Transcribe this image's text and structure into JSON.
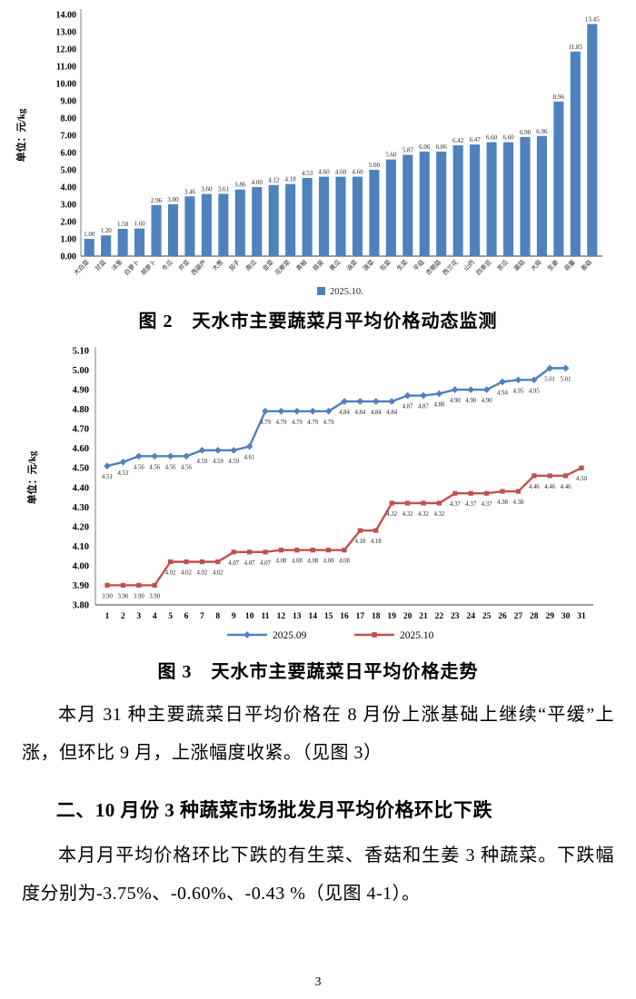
{
  "figures": {
    "fig2_caption": "图 2　天水市主要蔬菜月平均价格动态监测",
    "fig3_caption": "图 3　天水市主要蔬菜日平均价格走势"
  },
  "text": {
    "para1": "本月 31 种主要蔬菜日平均价格在 8 月份上涨基础上继续“平缓”上涨，但环比 9 月，上涨幅度收紧。（见图 3）",
    "heading2": "二、10 月份 3 种蔬菜市场批发月平均价格环比下跌",
    "para2": "本月月平均价格环比下跌的有生菜、香菇和生姜 3 种蔬菜。下跌幅度分别为-3.75%、-0.60%、-0.43 %（见图 4-1）。"
  },
  "page": {
    "number": "3"
  },
  "colors": {
    "bar_blue": "#4F81BD",
    "line_blue": "#4F81BD",
    "line_red": "#C0504D",
    "axis_gray": "#7f7f7f",
    "label_dark": "#262626"
  },
  "chart_data": [
    {
      "type": "bar",
      "title": "图 2 天水市主要蔬菜月平均价格动态监测",
      "ylabel": "单位：元/kg",
      "xlabel": "",
      "ylim": [
        0,
        14
      ],
      "ytick_step": 1,
      "grid": false,
      "legend": [
        "2025.10."
      ],
      "legend_position": "bottom",
      "bar_color": "#4F81BD",
      "categories": [
        "大白菜",
        "甘蓝",
        "洋葱",
        "白萝卜",
        "胡萝卜",
        "冬瓜",
        "芹菜",
        "西葫芦",
        "大葱",
        "茄子",
        "南瓜",
        "韭菜",
        "花椰菜",
        "青椒",
        "蒜苗",
        "黄瓜",
        "油菜",
        "菠菜",
        "包菜",
        "生菜",
        "平菇",
        "杏鲍菇",
        "西兰花",
        "山药",
        "四季豆",
        "苦瓜",
        "菌菇",
        "大蒜",
        "生姜",
        "蒜薹",
        "香菇"
      ],
      "values": [
        1.0,
        1.2,
        1.58,
        1.6,
        2.96,
        3.0,
        3.46,
        3.6,
        3.61,
        3.86,
        4.0,
        4.12,
        4.18,
        4.53,
        4.6,
        4.6,
        4.6,
        5.0,
        5.6,
        5.87,
        6.06,
        6.06,
        6.42,
        6.47,
        6.6,
        6.6,
        6.9,
        6.96,
        8.96,
        11.85,
        13.45
      ]
    },
    {
      "type": "line",
      "title": "图 3 天水市主要蔬菜日平均价格走势",
      "ylabel": "单位：元/kg",
      "xlabel": "",
      "ylim": [
        3.8,
        5.1
      ],
      "ytick_step": 0.1,
      "grid": false,
      "legend_position": "bottom",
      "x": [
        1,
        2,
        3,
        4,
        5,
        6,
        7,
        8,
        9,
        10,
        11,
        12,
        13,
        14,
        15,
        16,
        17,
        18,
        19,
        20,
        21,
        22,
        23,
        24,
        25,
        26,
        27,
        28,
        29,
        30,
        31
      ],
      "series": [
        {
          "name": "2025.09",
          "color": "#4F81BD",
          "marker": "diamond",
          "values": [
            4.51,
            4.53,
            4.56,
            4.56,
            4.56,
            4.56,
            4.59,
            4.59,
            4.59,
            4.61,
            4.79,
            4.79,
            4.79,
            4.79,
            4.79,
            4.84,
            4.84,
            4.84,
            4.84,
            4.87,
            4.87,
            4.88,
            4.9,
            4.9,
            4.9,
            4.94,
            4.95,
            4.95,
            5.01,
            5.01
          ]
        },
        {
          "name": "2025.10",
          "color": "#C0504D",
          "marker": "square",
          "values": [
            3.9,
            3.9,
            3.9,
            3.9,
            4.02,
            4.02,
            4.02,
            4.02,
            4.07,
            4.07,
            4.07,
            4.08,
            4.08,
            4.08,
            4.08,
            4.08,
            4.18,
            4.18,
            4.32,
            4.32,
            4.32,
            4.32,
            4.37,
            4.37,
            4.37,
            4.38,
            4.38,
            4.46,
            4.46,
            4.46,
            4.5
          ]
        }
      ]
    }
  ]
}
